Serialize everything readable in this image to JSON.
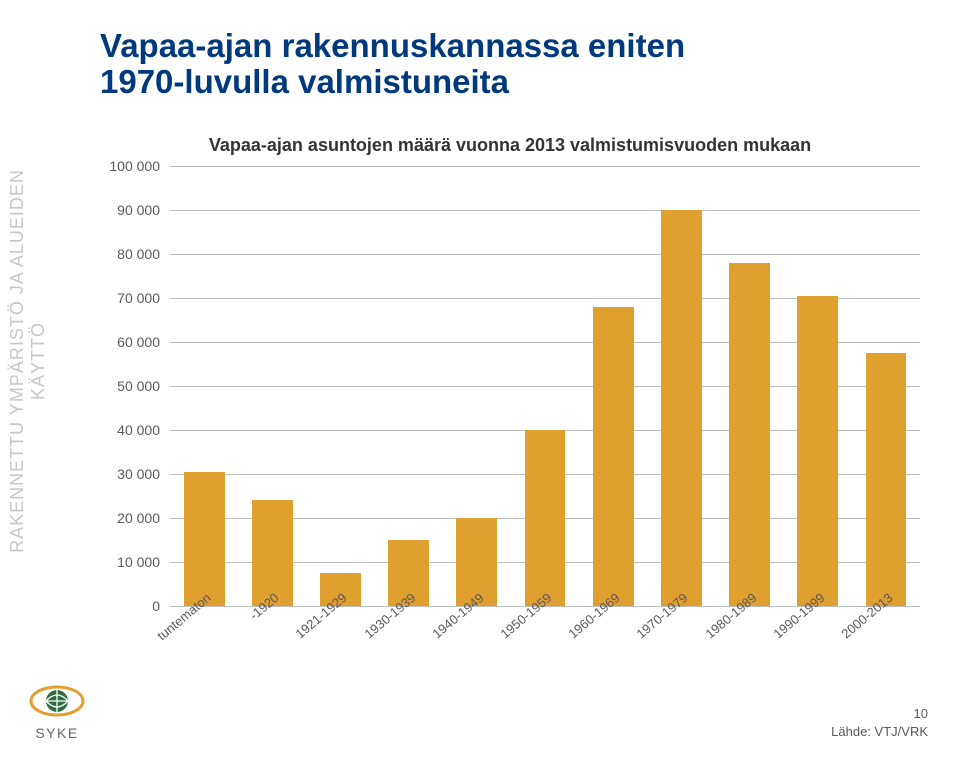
{
  "left_label": "RAKENNETTU YMPÄRISTÖ JA ALUEIDEN KÄYTTÖ",
  "left_label_color": "#c7c7c7",
  "title": "Vapaa-ajan rakennuskannassa eniten\n1970-luvulla valmistuneita",
  "title_color": "#003a7d",
  "title_fontsize": 33,
  "chart": {
    "type": "bar",
    "title": "Vapaa-ajan asuntojen määrä vuonna 2013 valmistumisvuoden mukaan",
    "title_fontsize": 18,
    "title_color": "#333333",
    "categories": [
      "tuntematon",
      "-1920",
      "1921-1929",
      "1930-1939",
      "1940-1949",
      "1950-1959",
      "1960-1969",
      "1970-1979",
      "1980-1989",
      "1990-1999",
      "2000-2013"
    ],
    "values": [
      30500,
      24000,
      7500,
      15000,
      20000,
      40000,
      68000,
      90000,
      78000,
      70500,
      57500
    ],
    "bar_color": "#e0a030",
    "bar_width": 0.6,
    "ylim": [
      0,
      100000
    ],
    "ytick_step": 10000,
    "ytick_labels": [
      "0",
      "10 000",
      "20 000",
      "30 000",
      "40 000",
      "50 000",
      "60 000",
      "70 000",
      "80 000",
      "90 000",
      "100 000"
    ],
    "grid_color": "#bfbfbf",
    "background_color": "#ffffff",
    "tick_fontsize": 14,
    "tick_color": "#595959",
    "xlabel_rotation": -40
  },
  "logo": {
    "ring_color": "#e0a030",
    "globe_color": "#2f6f3f",
    "text": "SYKE",
    "text_color": "#666666"
  },
  "source_label": "Lähde: VTJ/VRK",
  "page_number": "10"
}
